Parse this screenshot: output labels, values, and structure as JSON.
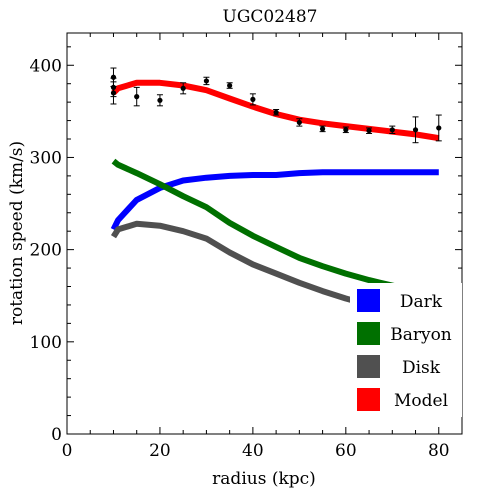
{
  "chart_data": {
    "type": "line",
    "title": "UGC02487",
    "xlabel": "radius (kpc)",
    "ylabel": "rotation speed (km/s)",
    "xlim": [
      0,
      85
    ],
    "ylim": [
      0,
      435
    ],
    "xticks": [
      0,
      20,
      40,
      60,
      80
    ],
    "yticks": [
      0,
      100,
      200,
      300,
      400
    ],
    "grid": false,
    "legend": "bottom-right",
    "series": [
      {
        "name": "Dark",
        "color": "#0000ff",
        "x": [
          10,
          11,
          15,
          20,
          25,
          30,
          35,
          40,
          45,
          50,
          55,
          60,
          65,
          70,
          75,
          80
        ],
        "y": [
          222,
          232,
          254,
          267,
          275,
          278,
          280,
          281,
          281,
          283,
          284,
          284,
          284,
          284,
          284,
          284
        ]
      },
      {
        "name": "Baryon",
        "color": "#007000",
        "x": [
          10,
          11,
          15,
          20,
          25,
          30,
          35,
          40,
          45,
          50,
          55,
          60,
          65,
          70,
          75,
          80
        ],
        "y": [
          296,
          292,
          283,
          271,
          258,
          246,
          229,
          215,
          203,
          191,
          182,
          174,
          167,
          161,
          155,
          150
        ]
      },
      {
        "name": "Disk",
        "color": "#505050",
        "x": [
          10,
          11,
          15,
          20,
          25,
          30,
          35,
          40,
          45,
          50,
          55,
          60,
          65,
          70,
          75,
          80
        ],
        "y": [
          214,
          222,
          228,
          226,
          220,
          212,
          197,
          184,
          174,
          164,
          155,
          147,
          140,
          134,
          128,
          122
        ]
      },
      {
        "name": "Model",
        "color": "#ff0000",
        "x": [
          10,
          11,
          15,
          20,
          25,
          30,
          35,
          40,
          45,
          50,
          55,
          60,
          65,
          70,
          75,
          80
        ],
        "y": [
          370,
          375,
          381,
          381,
          378,
          373,
          364,
          355,
          347,
          341,
          337,
          334,
          331,
          328,
          325,
          321
        ]
      }
    ],
    "observations": {
      "x": [
        10,
        10,
        10,
        15,
        20,
        25,
        30,
        35,
        40,
        45,
        50,
        55,
        60,
        65,
        70,
        75,
        80
      ],
      "y": [
        370,
        376,
        387,
        366,
        362,
        375,
        383,
        378,
        363,
        349,
        338,
        331,
        330,
        329,
        330,
        330,
        332
      ],
      "err": [
        12,
        10,
        10,
        10,
        6,
        6,
        4,
        3,
        6,
        3,
        4,
        3,
        3,
        3,
        4,
        14,
        14
      ]
    }
  }
}
